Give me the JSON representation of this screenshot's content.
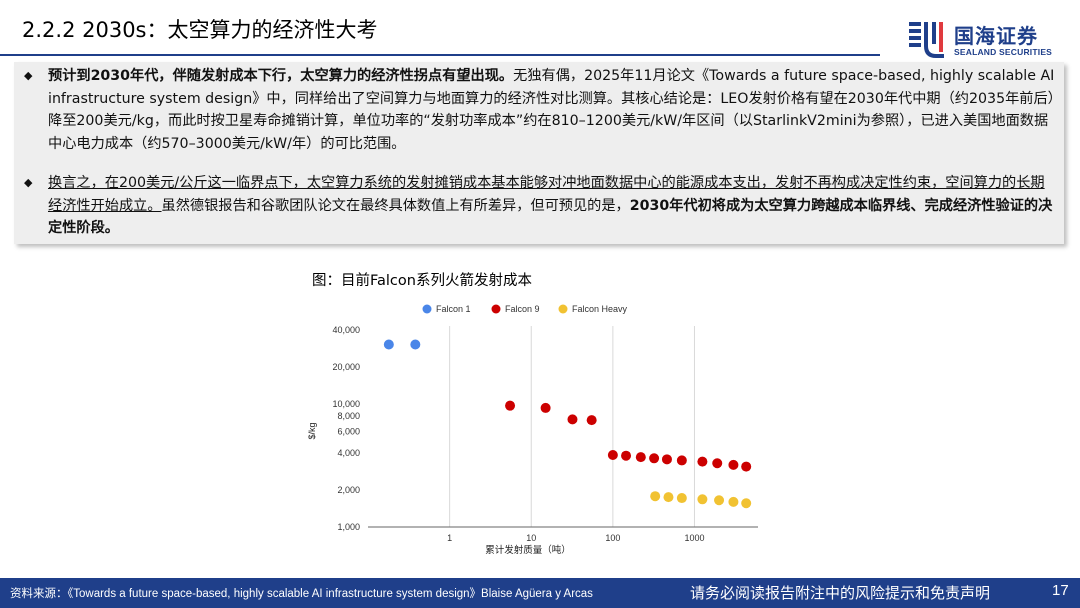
{
  "header": {
    "title": "2.2.2 2030s：太空算力的经济性大考",
    "logo_cn": "国海证券",
    "logo_en": "SEALAND SECURITIES"
  },
  "body": {
    "p1_bold": "预计到2030年代，伴随发射成本下行，太空算力的经济性拐点有望出现。",
    "p1_rest": "无独有偶，2025年11月论文《Towards a future space-based, highly scalable AI infrastructure system design》中，同样给出了空间算力与地面算力的经济性对比测算。其核心结论是：LEO发射价格有望在2030年代中期（约2035年前后）降至200美元/kg，而此时按卫星寿命摊销计算，单位功率的“发射功率成本”约在810–1200美元/kW/年区间（以StarlinkV2mini为参照），已进入美国地面数据中心电力成本（约570–3000美元/kW/年）的可比范围。",
    "p2_underline": "换言之，在200美元/公斤这一临界点下，太空算力系统的发射摊销成本基本能够对冲地面数据中心的能源成本支出，发射不再构成决定性约束，空间算力的长期经济性开始成立。",
    "p2_rest": "虽然德银报告和谷歌团队论文在最终具体数值上有所差异，但可预见的是，",
    "p2_bold": "2030年代初将成为太空算力跨越成本临界线、完成经济性验证的决定性阶段。"
  },
  "figure": {
    "title": "图：目前Falcon系列火箭发射成本"
  },
  "chart_data": {
    "type": "scatter",
    "xlabel": "累计发射质量（吨）",
    "ylabel": "$/kg",
    "xscale": "log",
    "yscale": "log",
    "xlim": [
      0.1,
      6000
    ],
    "ylim": [
      1000,
      40000
    ],
    "xticks": [
      1,
      10,
      100,
      1000
    ],
    "xtick_labels": [
      "1",
      "10",
      "100",
      "1000"
    ],
    "yticks": [
      1000,
      2000,
      4000,
      6000,
      8000,
      10000,
      20000,
      40000
    ],
    "ytick_labels": [
      "1,000",
      "2,000",
      "4,000",
      "6,000",
      "8,000",
      "10,000",
      "20,000",
      "40,000"
    ],
    "grid": "vertical",
    "legend_position": "top",
    "series": [
      {
        "name": "Falcon 1",
        "color": "#4a86e8",
        "x": [
          0.18,
          0.38
        ],
        "y": [
          30500,
          30500
        ]
      },
      {
        "name": "Falcon 9",
        "color": "#cc0000",
        "x": [
          5.5,
          15,
          32,
          55,
          100,
          145,
          220,
          320,
          460,
          700,
          1250,
          1900,
          3000,
          4300
        ],
        "y": [
          9700,
          9300,
          7500,
          7400,
          3850,
          3800,
          3700,
          3620,
          3550,
          3480,
          3400,
          3300,
          3200,
          3100
        ]
      },
      {
        "name": "Falcon Heavy",
        "color": "#f1c232",
        "x": [
          330,
          480,
          700,
          1250,
          2000,
          3000,
          4300
        ],
        "y": [
          1780,
          1750,
          1720,
          1680,
          1650,
          1600,
          1560
        ]
      }
    ]
  },
  "footer": {
    "source": "资料来源：《Towards a future space-based, highly scalable AI infrastructure system design》Blaise Agüera y Arcas",
    "disclaimer": "请务必阅读报告附注中的风险提示和免责声明",
    "page": "17"
  }
}
